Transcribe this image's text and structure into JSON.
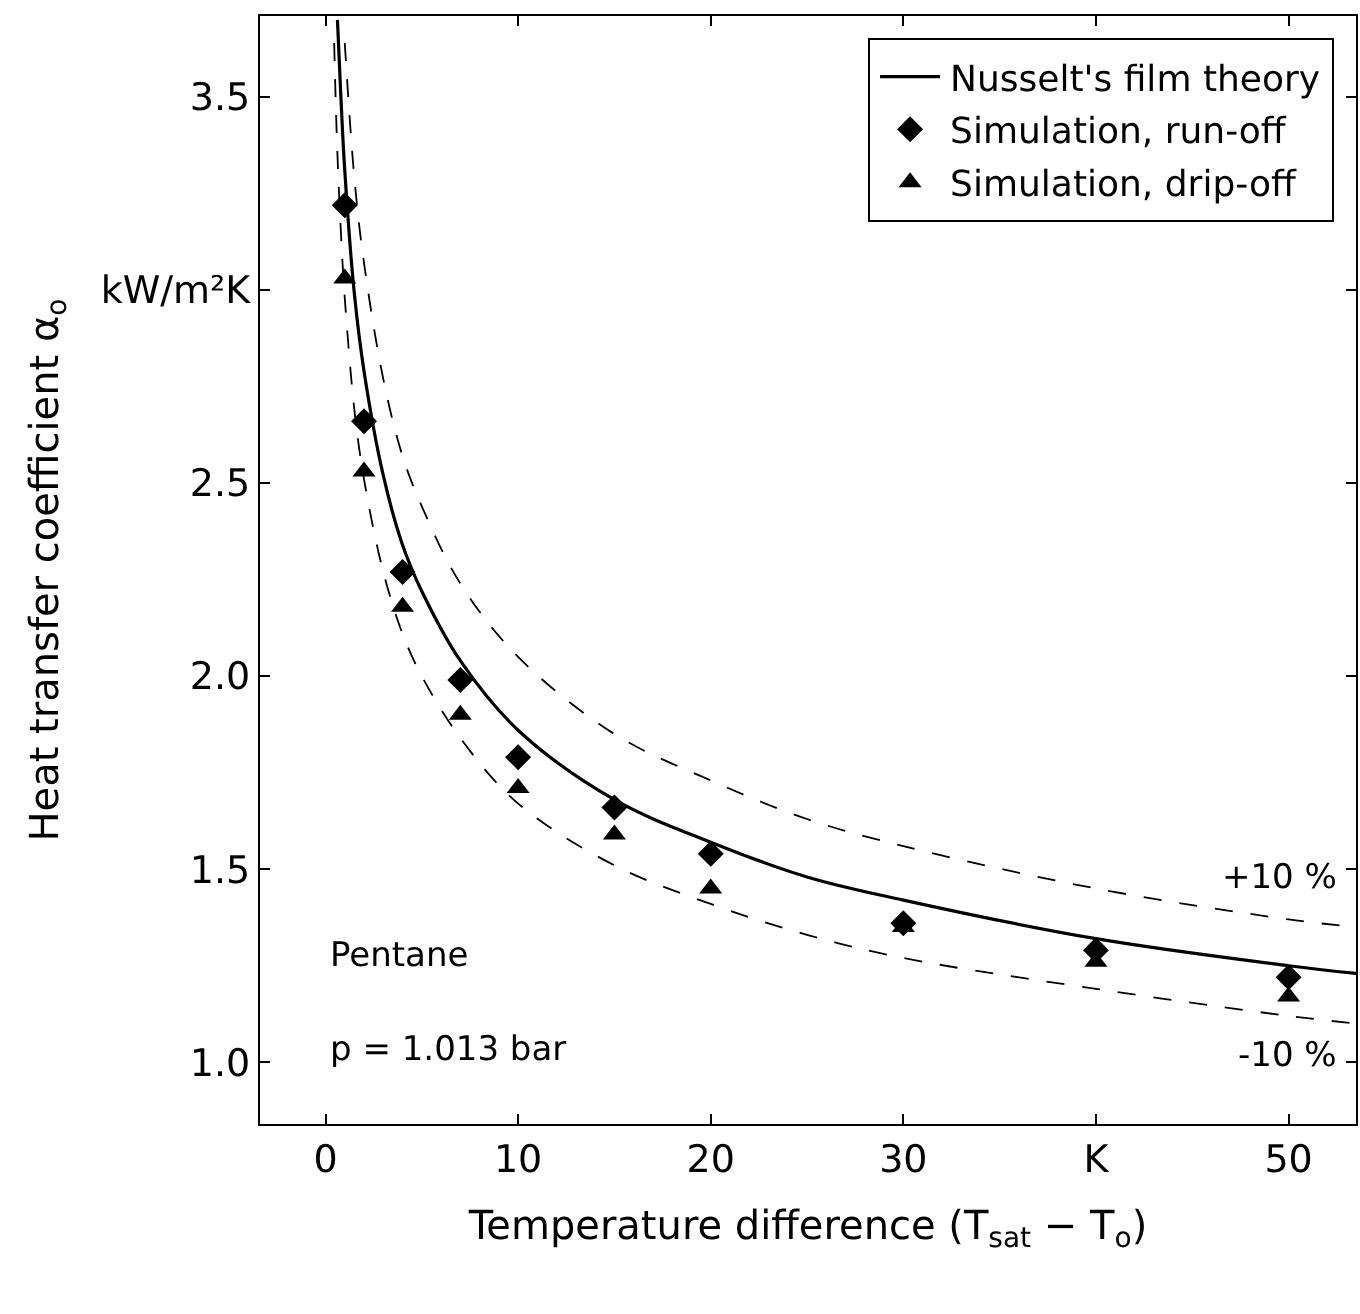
{
  "chart_data": {
    "type": "line",
    "xlabel": "Temperature difference (T$_{sat}$ − T$_{o}$)",
    "ylabel": "Heat transfer coefficient α$_{o}$",
    "xlim": [
      -3.4,
      53.5
    ],
    "ylim": [
      0.84,
      3.71
    ],
    "xticks": [
      0,
      10,
      20,
      30,
      {
        "value": 40,
        "label": "K"
      },
      50
    ],
    "yticks": [
      {
        "value": 1,
        "label": "1.0"
      },
      1.5,
      {
        "value": 2,
        "label": "2.0"
      },
      2.5,
      {
        "value": 3.0,
        "label": "kW/m²K"
      },
      3.5
    ],
    "legend": "top right",
    "series": [
      {
        "name": "Nusselt's film theory",
        "color": "#000000",
        "line_style": "solid",
        "marker": "none",
        "x": [
          0.62,
          0.8,
          1,
          1.5,
          2,
          3,
          4,
          5,
          7,
          10,
          15,
          20,
          25,
          30,
          40,
          50,
          53.5
        ],
        "values": [
          3.7,
          3.5,
          3.31,
          2.99,
          2.79,
          2.52,
          2.34,
          2.22,
          2.04,
          1.86,
          1.68,
          1.57,
          1.48,
          1.42,
          1.32,
          1.25,
          1.23
        ]
      },
      {
        "color": "#000000",
        "line_style": "dashed",
        "marker": "none",
        "x": [
          1,
          1.5,
          2,
          3,
          4,
          5,
          7,
          10,
          15,
          20,
          25,
          30,
          40,
          50,
          53.5
        ],
        "values": [
          3.64,
          3.29,
          3.07,
          2.77,
          2.57,
          2.44,
          2.24,
          2.05,
          1.85,
          1.73,
          1.63,
          1.56,
          1.45,
          1.37,
          1.35
        ]
      },
      {
        "color": "#000000",
        "line_style": "dashed",
        "marker": "none",
        "x": [
          0.45,
          0.6,
          0.8,
          1,
          1.5,
          2,
          3,
          4,
          5,
          7,
          10,
          15,
          20,
          25,
          30,
          40,
          50,
          53.5
        ],
        "values": [
          3.64,
          3.38,
          3.15,
          2.98,
          2.69,
          2.51,
          2.27,
          2.11,
          2.0,
          1.84,
          1.67,
          1.51,
          1.41,
          1.33,
          1.27,
          1.19,
          1.12,
          1.1
        ]
      },
      {
        "name": "Simulation, run-off",
        "type": "scatter",
        "color": "#000000",
        "marker": "diamond",
        "x": [
          1,
          2,
          4,
          7,
          10,
          15,
          20,
          30,
          40,
          50
        ],
        "values": [
          3.22,
          2.66,
          2.27,
          1.99,
          1.79,
          1.66,
          1.54,
          1.36,
          1.29,
          1.22
        ]
      },
      {
        "name": "Simulation, drip-off",
        "type": "scatter",
        "color": "#000000",
        "marker": "triangle",
        "x": [
          1,
          2,
          4,
          7,
          10,
          15,
          20,
          30,
          40,
          50
        ],
        "values": [
          3.03,
          2.53,
          2.18,
          1.9,
          1.71,
          1.59,
          1.45,
          1.35,
          1.26,
          1.17
        ]
      }
    ],
    "annotations": [
      "+10 %",
      "-10 %",
      "Pentane",
      "p = 1.013 bar"
    ]
  }
}
